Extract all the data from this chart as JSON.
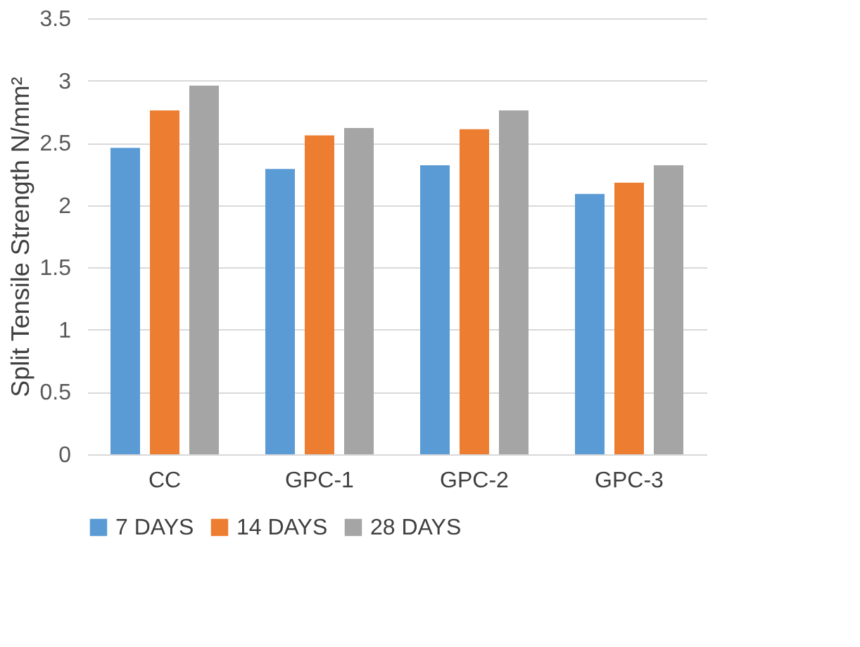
{
  "chart_data": {
    "type": "bar",
    "ylabel": "Split Tensile Strength N/mm²",
    "categories": [
      "CC",
      "GPC-1",
      "GPC-2",
      "GPC-3"
    ],
    "series": [
      {
        "name": "7 DAYS",
        "color": "#5b9bd5",
        "values": [
          2.46,
          2.29,
          2.32,
          2.09
        ]
      },
      {
        "name": "14 DAYS",
        "color": "#ed7d31",
        "values": [
          2.76,
          2.56,
          2.61,
          2.18
        ]
      },
      {
        "name": "28 DAYS",
        "color": "#a5a5a5",
        "values": [
          2.96,
          2.62,
          2.76,
          2.32
        ]
      }
    ],
    "ylim": [
      0,
      3.5
    ],
    "yticks": [
      0,
      0.5,
      1,
      1.5,
      2,
      2.5,
      3,
      3.5
    ],
    "grid": "y",
    "legend": "bottom"
  }
}
